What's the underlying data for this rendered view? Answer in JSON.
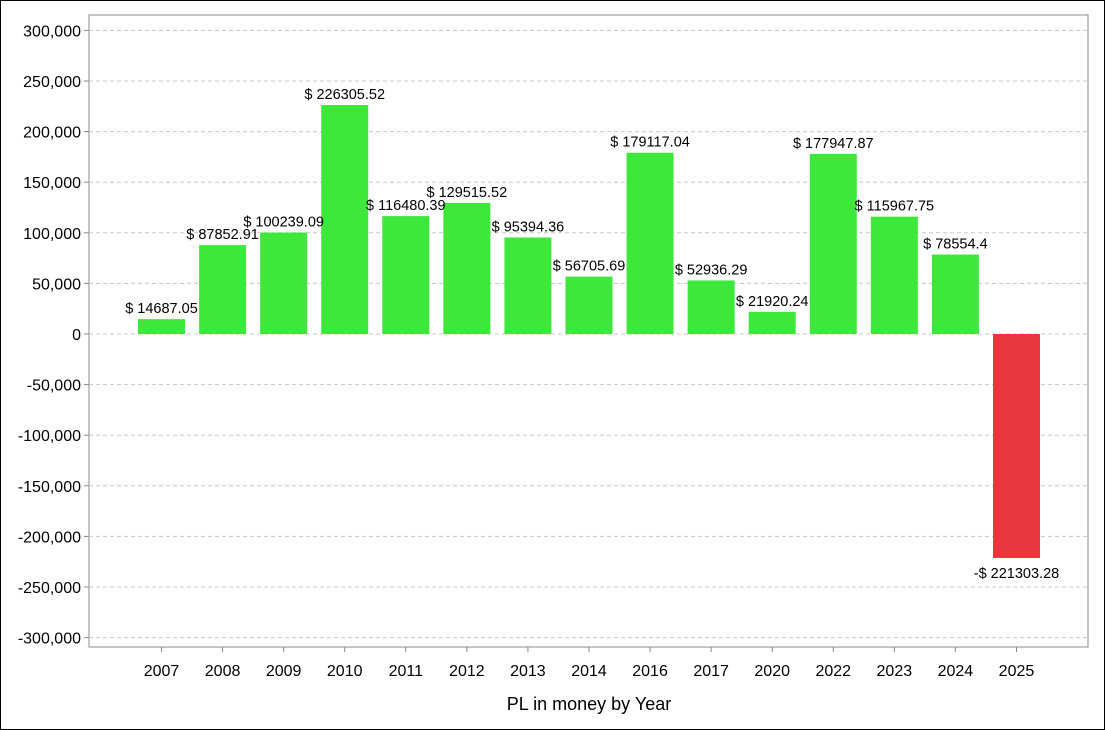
{
  "chart_data": {
    "type": "bar",
    "title": "",
    "xlabel": "PL in money by Year",
    "ylabel": "",
    "ylim": [
      -320000,
      318000
    ],
    "yticks": [
      300000,
      250000,
      200000,
      150000,
      100000,
      50000,
      0,
      -50000,
      -100000,
      -150000,
      -200000,
      -250000,
      -300000
    ],
    "ytick_labels": [
      "300,000",
      "250,000",
      "200,000",
      "150,000",
      "100,000",
      "50,000",
      "0",
      "-50,000",
      "-100,000",
      "-150,000",
      "-200,000",
      "-250,000",
      "-300,000"
    ],
    "grid": true,
    "legend": "none",
    "categories": [
      "2007",
      "2008",
      "2009",
      "2010",
      "2011",
      "2012",
      "2013",
      "2014",
      "2016",
      "2017",
      "2020",
      "2022",
      "2023",
      "2024",
      "2025"
    ],
    "values": [
      14687.05,
      87852.91,
      100239.09,
      226305.52,
      116480.39,
      129515.52,
      95394.36,
      56705.69,
      179117.04,
      52936.29,
      21920.24,
      177947.87,
      115967.75,
      78554.4,
      -221303.28
    ],
    "data_labels": [
      "$ 14687.05",
      "$ 87852.91",
      "$ 100239.09",
      "$ 226305.52",
      "$ 116480.39",
      "$ 129515.52",
      "$ 95394.36",
      "$ 56705.69",
      "$ 179117.04",
      "$ 52936.29",
      "$ 21920.24",
      "$ 177947.87",
      "$ 115967.75",
      "$ 78554.4",
      "-$ 221303.28"
    ],
    "colors": {
      "positive": "#3ee83a",
      "negative": "#e8373c",
      "grid": "#c8c8c8",
      "axis": "#888888"
    }
  }
}
